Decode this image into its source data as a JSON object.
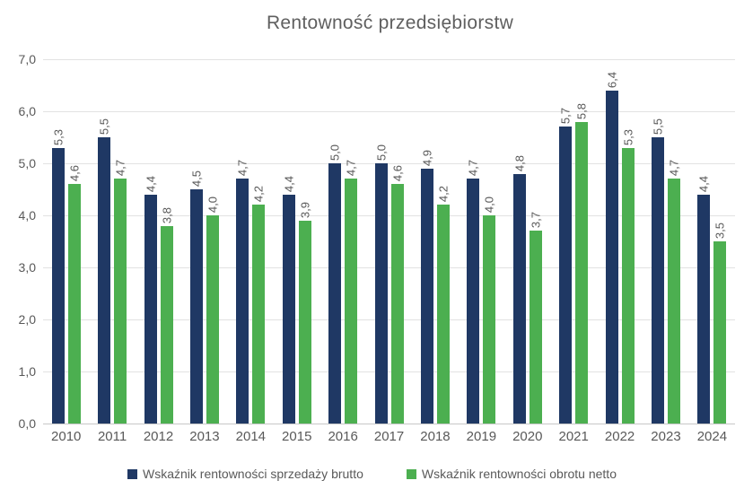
{
  "title": "Rentowność przedsiębiorstw",
  "colors": {
    "series_brutto": "#1f3864",
    "series_netto": "#4caf50",
    "title_text": "#5f5f5f",
    "axis_text": "#595959",
    "gridline": "#e2e2e2",
    "baseline": "#c8c8c8",
    "background": "#ffffff"
  },
  "chart_data": {
    "type": "bar",
    "title": "Rentowność przedsiębiorstw",
    "categories": [
      "2010",
      "2011",
      "2012",
      "2013",
      "2014",
      "2015",
      "2016",
      "2017",
      "2018",
      "2019",
      "2020",
      "2021",
      "2022",
      "2023",
      "2024"
    ],
    "series": [
      {
        "name": "Wskaźnik rentowności sprzedaży brutto",
        "color": "#1f3864",
        "values": [
          5.3,
          5.5,
          4.4,
          4.5,
          4.7,
          4.4,
          5.0,
          5.0,
          4.9,
          4.7,
          4.8,
          5.7,
          6.4,
          5.5,
          4.4
        ],
        "labels": [
          "5,3",
          "5,5",
          "4,4",
          "4,5",
          "4,7",
          "4,4",
          "5,0",
          "5,0",
          "4,9",
          "4,7",
          "4,8",
          "5,7",
          "6,4",
          "5,5",
          "4,4"
        ]
      },
      {
        "name": "Wskaźnik rentowności obrotu netto",
        "color": "#4caf50",
        "values": [
          4.6,
          4.7,
          3.8,
          4.0,
          4.2,
          3.9,
          4.7,
          4.6,
          4.2,
          4.0,
          3.7,
          5.8,
          5.3,
          4.7,
          3.5
        ],
        "labels": [
          "4,6",
          "4,7",
          "3,8",
          "4,0",
          "4,2",
          "3,9",
          "4,7",
          "4,6",
          "4,2",
          "4,0",
          "3,7",
          "5,8",
          "5,3",
          "4,7",
          "3,5"
        ]
      }
    ],
    "y_axis": {
      "min": 0,
      "max": 7,
      "step": 1,
      "tick_labels": [
        "0,0",
        "1,0",
        "2,0",
        "3,0",
        "4,0",
        "5,0",
        "6,0",
        "7,0"
      ]
    },
    "grid": true,
    "data_labels_rotation": "vertical-bottom-up",
    "legend_position": "bottom"
  },
  "legend": {
    "items": [
      {
        "label": "Wskaźnik rentowności sprzedaży brutto",
        "color": "#1f3864"
      },
      {
        "label": "Wskaźnik rentowności obrotu netto",
        "color": "#4caf50"
      }
    ]
  }
}
